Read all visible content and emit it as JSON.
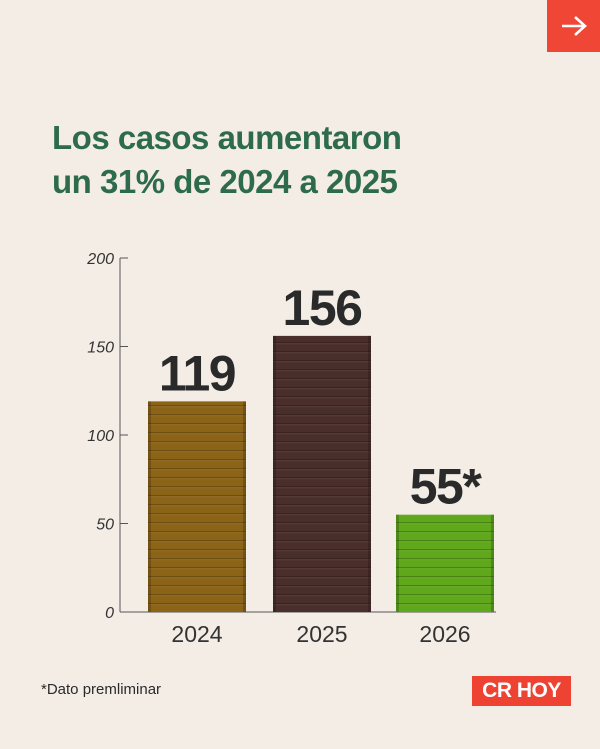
{
  "nav": {
    "next_icon": "arrow-right-icon",
    "accent": "#ef4636"
  },
  "title_lines": [
    "Los casos aumentaron",
    "un 31% de 2024 a 2025"
  ],
  "chart_data": {
    "type": "bar",
    "categories": [
      "2024",
      "2025",
      "2026"
    ],
    "values": [
      119,
      156,
      55
    ],
    "value_labels": [
      "119",
      "156",
      "55*"
    ],
    "bar_colors": [
      "#8c6418",
      "#4a2e2c",
      "#5fa81b"
    ],
    "title": "Los casos aumentaron un 31% de 2024 a 2025",
    "xlabel": "",
    "ylabel": "",
    "ylim": [
      0,
      200
    ],
    "yticks": [
      0,
      50,
      100,
      150,
      200
    ],
    "grid": false,
    "legend": "none"
  },
  "footnote": "*Dato premliminar",
  "logo_text": "CR HOY",
  "colors": {
    "background": "#f3ede6",
    "title": "#2e6b4c",
    "brand": "#ee4232"
  }
}
